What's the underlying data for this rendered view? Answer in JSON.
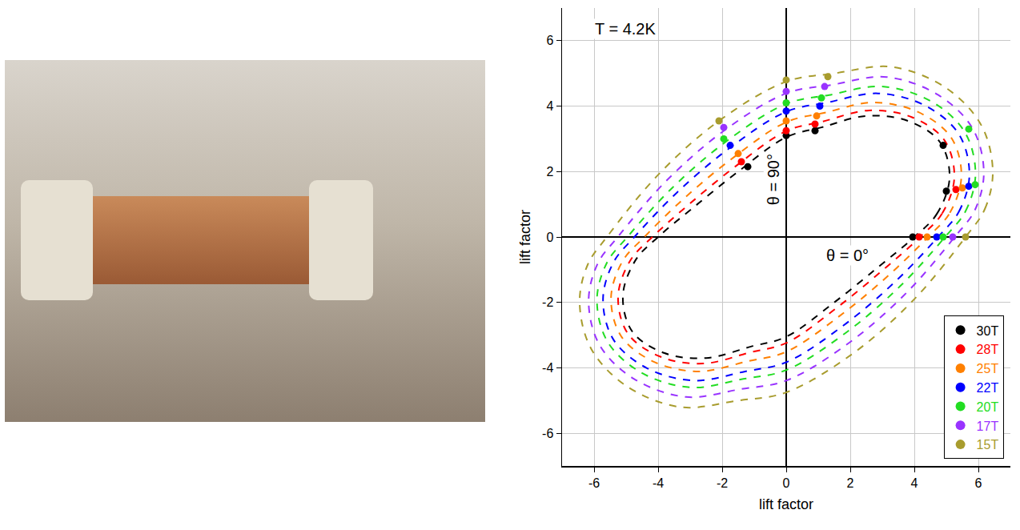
{
  "chart_data": {
    "type": "scatter",
    "x_label": "lift factor",
    "y_label": "lift factor",
    "annotations": [
      "T = 4.2K",
      "θ = 90°",
      "θ = 0°"
    ],
    "xlim": [
      -7,
      7
    ],
    "ylim": [
      -7,
      7
    ],
    "xticks": [
      -6,
      -4,
      -2,
      0,
      2,
      4,
      6
    ],
    "yticks": [
      -6,
      -4,
      -2,
      0,
      2,
      4,
      6
    ],
    "grid": true,
    "legend": "lower right",
    "marker": "circle",
    "line_style": "dash",
    "series": [
      {
        "name": "30T",
        "color": "#000000",
        "x": [
          3.95,
          5.0,
          4.9,
          0.9,
          0,
          -1.2
        ],
        "y": [
          0,
          1.4,
          2.8,
          3.25,
          3.1,
          2.15
        ],
        "fit_x": [
          4.0,
          4.7,
          5.1,
          4.8,
          3.8,
          2.5,
          1.1,
          0,
          -1.5,
          -2.9,
          -4.0,
          -4.7,
          -5.1,
          -4.8,
          -3.8,
          -2.5,
          -1.1,
          0,
          1.5,
          2.9,
          4.0
        ],
        "fit_y": [
          0,
          0.7,
          1.8,
          2.9,
          3.55,
          3.7,
          3.35,
          3.05,
          2.0,
          0.9,
          0,
          -0.7,
          -1.8,
          -2.9,
          -3.55,
          -3.7,
          -3.35,
          -3.05,
          -2.0,
          -0.9,
          0
        ]
      },
      {
        "name": "28T",
        "color": "#ff0000",
        "x": [
          4.15,
          5.3,
          0.9,
          0,
          -1.4
        ],
        "y": [
          0,
          1.45,
          3.45,
          3.25,
          2.3
        ],
        "fit_x": [
          4.18,
          4.87,
          5.25,
          4.94,
          3.93,
          2.59,
          1.14,
          0,
          -1.57,
          -3.02,
          -4.18,
          -4.87,
          -5.25,
          -4.94,
          -3.93,
          -2.59,
          -1.14,
          0,
          1.57,
          3.02,
          4.18
        ],
        "fit_y": [
          0,
          0.72,
          1.82,
          2.96,
          3.66,
          3.87,
          3.53,
          3.24,
          2.17,
          1.01,
          0,
          -0.72,
          -1.82,
          -2.96,
          -3.66,
          -3.87,
          -3.53,
          -3.24,
          -2.17,
          -1.01,
          0
        ]
      },
      {
        "name": "25T",
        "color": "#ff8000",
        "x": [
          4.4,
          5.5,
          0.95,
          0,
          -1.5
        ],
        "y": [
          0,
          1.5,
          3.7,
          3.55,
          2.55
        ],
        "fit_x": [
          4.43,
          5.11,
          5.47,
          5.15,
          4.12,
          2.72,
          1.21,
          0,
          -1.66,
          -3.2,
          -4.43,
          -5.11,
          -5.47,
          -5.15,
          -4.12,
          -2.72,
          -1.21,
          0,
          1.66,
          3.2,
          4.43
        ],
        "fit_y": [
          0,
          0.74,
          1.85,
          3.04,
          3.82,
          4.11,
          3.8,
          3.51,
          2.42,
          1.17,
          0,
          -0.74,
          -1.85,
          -3.04,
          -3.82,
          -4.11,
          -3.8,
          -3.51,
          -2.42,
          -1.17,
          0
        ]
      },
      {
        "name": "22T",
        "color": "#0000ff",
        "x": [
          4.7,
          5.7,
          1.05,
          0,
          -1.75
        ],
        "y": [
          0,
          1.55,
          4.0,
          3.85,
          2.8
        ],
        "fit_x": [
          4.74,
          5.39,
          5.72,
          5.4,
          4.35,
          2.87,
          1.28,
          0,
          -1.78,
          -3.41,
          -4.74,
          -5.39,
          -5.72,
          -5.4,
          -4.35,
          -2.87,
          -1.28,
          0,
          1.78,
          3.41,
          4.74
        ],
        "fit_y": [
          0,
          0.77,
          1.89,
          3.13,
          4.01,
          4.39,
          4.11,
          3.83,
          2.71,
          1.36,
          0,
          -0.77,
          -1.89,
          -3.13,
          -4.01,
          -4.39,
          -4.11,
          -3.83,
          -2.71,
          -1.36,
          0
        ]
      },
      {
        "name": "20T",
        "color": "#22dd22",
        "x": [
          4.9,
          5.9,
          5.7,
          1.1,
          0,
          -1.95
        ],
        "y": [
          0,
          1.6,
          3.3,
          4.25,
          4.1,
          3.0
        ],
        "fit_x": [
          4.96,
          5.6,
          5.91,
          5.58,
          4.52,
          2.98,
          1.34,
          0,
          -1.86,
          -3.56,
          -4.96,
          -5.6,
          -5.91,
          -5.58,
          -4.52,
          -2.98,
          -1.34,
          0,
          1.86,
          3.56,
          4.96
        ],
        "fit_y": [
          0,
          0.79,
          1.92,
          3.2,
          4.15,
          4.6,
          4.34,
          4.07,
          2.93,
          1.5,
          0,
          -0.79,
          -1.92,
          -3.2,
          -4.15,
          -4.6,
          -4.34,
          -4.07,
          -2.93,
          -1.5,
          0
        ]
      },
      {
        "name": "17T",
        "color": "#9933ff",
        "x": [
          5.2,
          1.2,
          0,
          -1.95
        ],
        "y": [
          0,
          4.6,
          4.45,
          3.35
        ],
        "fit_x": [
          5.26,
          5.89,
          6.17,
          5.83,
          4.75,
          3.13,
          1.42,
          0,
          -1.97,
          -3.77,
          -5.26,
          -5.89,
          -6.17,
          -5.83,
          -4.75,
          -3.13,
          -1.42,
          0,
          1.97,
          3.77,
          5.26
        ],
        "fit_y": [
          0,
          0.82,
          1.96,
          3.3,
          4.34,
          4.89,
          4.65,
          4.39,
          3.23,
          1.69,
          0,
          -0.82,
          -1.96,
          -3.3,
          -4.34,
          -4.89,
          -4.65,
          -4.39,
          -3.23,
          -1.69,
          0
        ]
      },
      {
        "name": "15T",
        "color": "#a89c2e",
        "x": [
          5.6,
          1.3,
          0,
          -2.1
        ],
        "y": [
          0,
          4.9,
          4.8,
          3.55
        ],
        "fit_x": [
          5.6,
          6.2,
          6.45,
          6.1,
          5.0,
          3.3,
          1.5,
          0,
          -2.1,
          -4.0,
          -5.6,
          -6.2,
          -6.45,
          -6.1,
          -5.0,
          -3.3,
          -1.5,
          0,
          2.1,
          4.0,
          5.6
        ],
        "fit_y": [
          0,
          0.85,
          2.0,
          3.4,
          4.55,
          5.2,
          5.0,
          4.75,
          3.55,
          1.9,
          0,
          -0.85,
          -2.0,
          -3.4,
          -4.55,
          -5.2,
          -5.0,
          -4.75,
          -3.55,
          -1.9,
          0
        ]
      }
    ]
  }
}
